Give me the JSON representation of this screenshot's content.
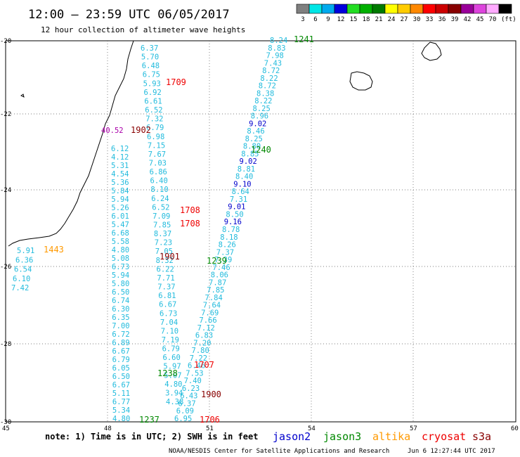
{
  "header": {
    "title": "12:00 — 23:59 UTC 06/05/2017",
    "subtitle": "12 hour collection of altimeter wave heights"
  },
  "legend": {
    "unit": "(ft)",
    "items": [
      {
        "label": "3",
        "color": "#7f7f7f"
      },
      {
        "label": "6",
        "color": "#00e6e6"
      },
      {
        "label": "9",
        "color": "#00aaee"
      },
      {
        "label": "12",
        "color": "#0000dd"
      },
      {
        "label": "15",
        "color": "#22dd22"
      },
      {
        "label": "18",
        "color": "#00b000"
      },
      {
        "label": "21",
        "color": "#007a00"
      },
      {
        "label": "24",
        "color": "#ffff00"
      },
      {
        "label": "27",
        "color": "#ffcc00"
      },
      {
        "label": "30",
        "color": "#ff8800"
      },
      {
        "label": "33",
        "color": "#ff0000"
      },
      {
        "label": "36",
        "color": "#cc0000"
      },
      {
        "label": "39",
        "color": "#880000"
      },
      {
        "label": "42",
        "color": "#990099"
      },
      {
        "label": "45",
        "color": "#dd44dd"
      },
      {
        "label": "70",
        "color": "#ffaaff"
      },
      {
        "label": "",
        "color": "#000000"
      }
    ]
  },
  "axes": {
    "lat_labels": [
      "-20",
      "-22",
      "-24",
      "-26",
      "-28",
      "-30"
    ],
    "lon_labels": [
      "45",
      "48",
      "51",
      "54",
      "57",
      "60"
    ]
  },
  "colors": {
    "light": "#22bbdd",
    "blue": "#0000cc",
    "green": "#008800",
    "orange": "#ff9900",
    "red": "#ee0000",
    "darkred": "#880000",
    "purple": "#aa00aa"
  },
  "track_labels": [
    {
      "text": "1241",
      "color": "green"
    },
    {
      "text": "1709",
      "color": "red"
    },
    {
      "text": "1902",
      "color": "darkred"
    },
    {
      "text": "40.52",
      "color": "purple"
    },
    {
      "text": "1240",
      "color": "green"
    },
    {
      "text": "1708",
      "color": "red"
    },
    {
      "text": "1708",
      "color": "red"
    },
    {
      "text": "1443",
      "color": "orange"
    },
    {
      "text": "1901",
      "color": "darkred"
    },
    {
      "text": "1239",
      "color": "green"
    },
    {
      "text": "1707",
      "color": "red"
    },
    {
      "text": "1238",
      "color": "green"
    },
    {
      "text": "1900",
      "color": "darkred"
    },
    {
      "text": "1237",
      "color": "green"
    },
    {
      "text": "1706",
      "color": "red"
    }
  ],
  "tracks": {
    "track_e_top": [
      "8.24",
      "8.83",
      "7.98",
      "7.43",
      "8.72",
      "8.22",
      "8.72",
      "8.38",
      "8.22",
      "8.25",
      "8.96",
      "9.02",
      "8.46",
      "8.25",
      "8.80",
      "8.85",
      "9.02",
      "8.81",
      "8.40",
      "9.10",
      "8.64",
      "7.31",
      "9.01",
      "8.50",
      "9.16",
      "8.78",
      "8.18",
      "8.26",
      "7.37",
      "7.39",
      "7.46",
      "8.06",
      "7.87",
      "7.85",
      "7.84",
      "7.64",
      "7.69",
      "7.66",
      "7.12",
      "6.83",
      "7.20",
      "7.80",
      "7.22",
      "6.46",
      "7.53",
      "7.40",
      "6.23",
      "6.43",
      "6.37",
      "6.09",
      "6.95"
    ],
    "track_w_top": [
      "6.37",
      "5.70",
      "6.48",
      "6.75",
      "5.93",
      "6.92",
      "6.61",
      "6.52",
      "7.32",
      "6.79",
      "6.98",
      "7.15",
      "7.67",
      "7.03",
      "6.86",
      "6.40",
      "8.10",
      "6.24",
      "6.52",
      "7.09",
      "7.85",
      "8.37",
      "7.23",
      "7.05",
      "8.32",
      "6.22",
      "7.71",
      "7.37",
      "6.81",
      "6.67",
      "6.73",
      "7.04",
      "7.10",
      "7.19",
      "6.79",
      "6.60",
      "5.97",
      "5.07",
      "4.80",
      "3.94",
      "4.38"
    ],
    "track_w_left": [
      "6.12",
      "4.12",
      "5.31",
      "4.54",
      "5.36",
      "5.84",
      "5.94",
      "5.26",
      "6.01",
      "5.47",
      "6.68",
      "5.58",
      "4.80",
      "5.08",
      "6.73",
      "5.94",
      "5.80",
      "6.50",
      "6.74",
      "6.30",
      "6.35",
      "7.00",
      "6.72",
      "6.89",
      "6.67",
      "6.79",
      "6.05",
      "6.50",
      "6.67",
      "5.11",
      "6.77",
      "5.34",
      "4.80"
    ],
    "track_sw": [
      "5.91",
      "6.36",
      "6.54",
      "6.10",
      "7.42"
    ]
  },
  "footer": {
    "note": "note: 1) Time is in UTC; 2) SWH is in feet",
    "sats": [
      {
        "text": "jason2",
        "color": "blue"
      },
      {
        "text": "jason3",
        "color": "green"
      },
      {
        "text": "altika",
        "color": "orange"
      },
      {
        "text": "cryosat",
        "color": "red"
      },
      {
        "text": "s3a",
        "color": "darkred"
      }
    ],
    "credit": "NOAA/NESDIS Center for Satellite Applications and Research",
    "timestamp": "Jun  6 12:27:44 UTC 2017"
  }
}
